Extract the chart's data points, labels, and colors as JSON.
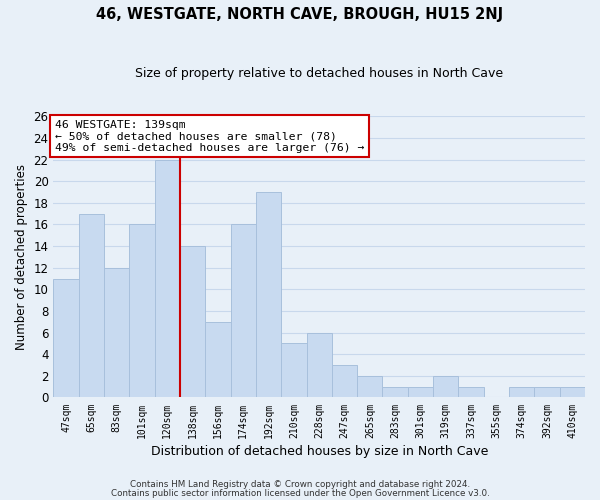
{
  "title": "46, WESTGATE, NORTH CAVE, BROUGH, HU15 2NJ",
  "subtitle": "Size of property relative to detached houses in North Cave",
  "xlabel": "Distribution of detached houses by size in North Cave",
  "ylabel": "Number of detached properties",
  "footer_line1": "Contains HM Land Registry data © Crown copyright and database right 2024.",
  "footer_line2": "Contains public sector information licensed under the Open Government Licence v3.0.",
  "bar_labels": [
    "47sqm",
    "65sqm",
    "83sqm",
    "101sqm",
    "120sqm",
    "138sqm",
    "156sqm",
    "174sqm",
    "192sqm",
    "210sqm",
    "228sqm",
    "247sqm",
    "265sqm",
    "283sqm",
    "301sqm",
    "319sqm",
    "337sqm",
    "355sqm",
    "374sqm",
    "392sqm",
    "410sqm"
  ],
  "bar_values": [
    11,
    17,
    12,
    16,
    22,
    14,
    7,
    16,
    19,
    5,
    6,
    3,
    2,
    1,
    1,
    2,
    1,
    0,
    1,
    1,
    1
  ],
  "bar_color": "#c8daf0",
  "bar_edge_color": "#a8c0dc",
  "vline_color": "#cc0000",
  "annotation_title": "46 WESTGATE: 139sqm",
  "annotation_line1": "← 50% of detached houses are smaller (78)",
  "annotation_line2": "49% of semi-detached houses are larger (76) →",
  "annotation_box_facecolor": "#ffffff",
  "annotation_box_edgecolor": "#cc0000",
  "ylim": [
    0,
    26
  ],
  "yticks": [
    0,
    2,
    4,
    6,
    8,
    10,
    12,
    14,
    16,
    18,
    20,
    22,
    24,
    26
  ],
  "grid_color": "#c8d8ec",
  "background_color": "#e8f0f8",
  "title_fontsize": 10.5,
  "subtitle_fontsize": 9
}
